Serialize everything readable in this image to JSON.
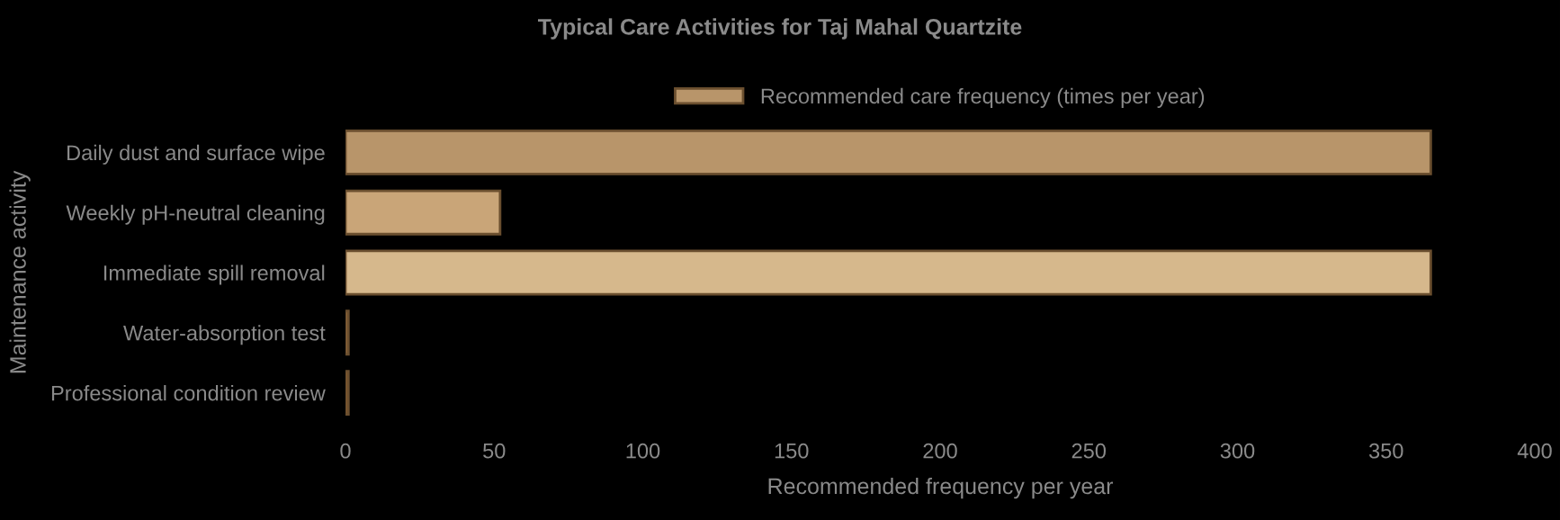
{
  "chart_data": {
    "type": "bar",
    "orientation": "horizontal",
    "title": "Typical Care Activities for Taj Mahal Quartzite",
    "xlabel": "Recommended frequency per year",
    "ylabel": "Maintenance activity",
    "categories": [
      "Daily dust and surface wipe",
      "Weekly pH-neutral cleaning",
      "Immediate spill removal",
      "Water-absorption test",
      "Professional condition review"
    ],
    "series": [
      {
        "name": "Recommended care frequency (times per year)",
        "color": "#b8956a",
        "colors": [
          "#b8956a",
          "#c9a578",
          "#d6b88c",
          "#a0703f",
          "#8b5a2b"
        ],
        "values": [
          365,
          52,
          365,
          1,
          1
        ]
      }
    ],
    "xlim": [
      0,
      400
    ],
    "xticks": [
      0,
      50,
      100,
      150,
      200,
      250,
      300,
      350,
      400
    ],
    "grid": false,
    "legend": "top"
  }
}
